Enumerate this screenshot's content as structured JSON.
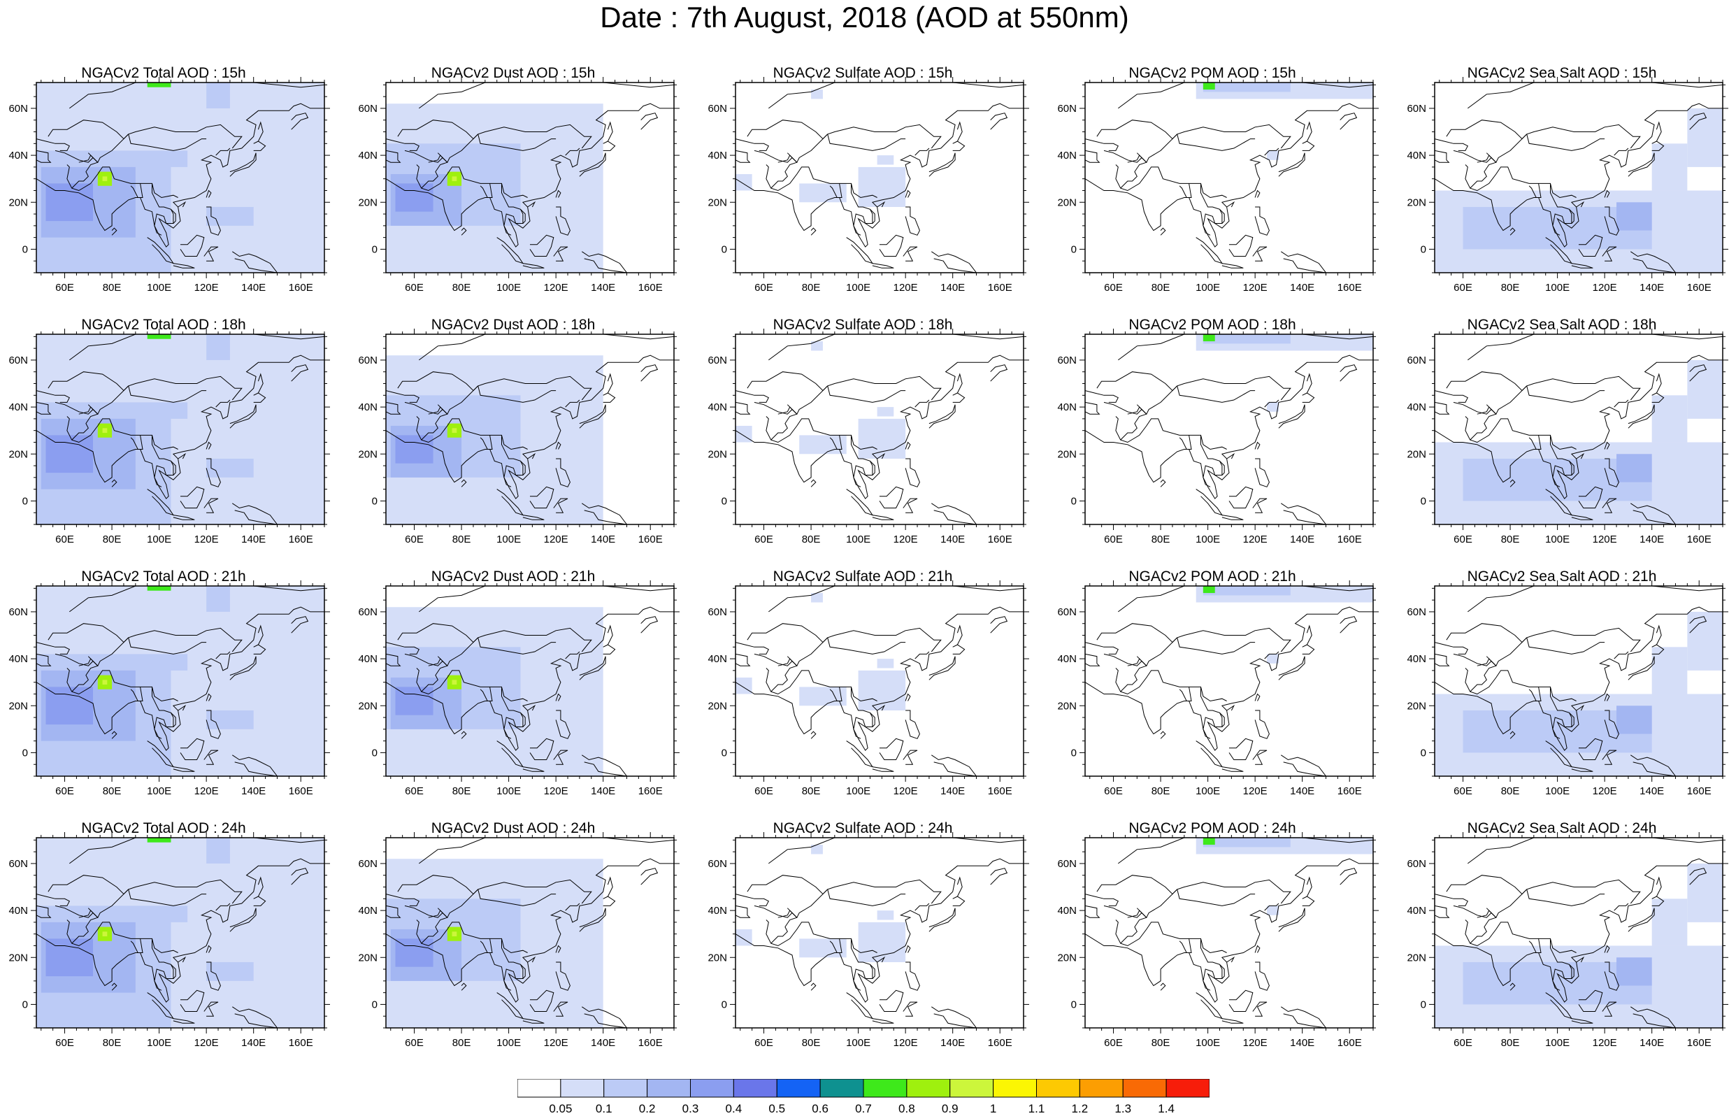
{
  "title": "Date : 7th August, 2018 (AOD at 550nm)",
  "map": {
    "lon_range": [
      48,
      170
    ],
    "lat_range": [
      -10,
      71
    ],
    "x_tick_labels": [
      "60E",
      "80E",
      "100E",
      "120E",
      "140E",
      "160E"
    ],
    "x_tick_values": [
      60,
      80,
      100,
      120,
      140,
      160
    ],
    "y_tick_labels": [
      "0",
      "20N",
      "40N",
      "60N"
    ],
    "y_tick_values": [
      0,
      20,
      40,
      60
    ],
    "coastline_color": "#000000"
  },
  "columns": [
    "Total",
    "Dust",
    "Sulfate",
    "POM",
    "Sea Salt"
  ],
  "times": [
    "15h",
    "18h",
    "21h",
    "24h"
  ],
  "panels": [
    [
      {
        "title": "NGACv2 Total AOD : 15h",
        "species": "total"
      },
      {
        "title": "NGACv2 Dust AOD : 15h",
        "species": "dust"
      },
      {
        "title": "NGACv2 Sulfate AOD : 15h",
        "species": "sulfate"
      },
      {
        "title": "NGACv2 POM AOD : 15h",
        "species": "pom"
      },
      {
        "title": "NGACv2 Sea Salt AOD : 15h",
        "species": "seasalt"
      }
    ],
    [
      {
        "title": "NGACv2 Total AOD : 18h",
        "species": "total"
      },
      {
        "title": "NGACv2 Dust AOD : 18h",
        "species": "dust"
      },
      {
        "title": "NGACv2 Sulfate AOD : 18h",
        "species": "sulfate"
      },
      {
        "title": "NGACv2 POM AOD : 18h",
        "species": "pom"
      },
      {
        "title": "NGACv2 Sea Salt AOD : 18h",
        "species": "seasalt"
      }
    ],
    [
      {
        "title": "NGACv2 Total AOD : 21h",
        "species": "total"
      },
      {
        "title": "NGACv2 Dust AOD : 21h",
        "species": "dust"
      },
      {
        "title": "NGACv2 Sulfate AOD : 21h",
        "species": "sulfate"
      },
      {
        "title": "NGACv2 POM AOD : 21h",
        "species": "pom"
      },
      {
        "title": "NGACv2 Sea Salt AOD : 21h",
        "species": "seasalt"
      }
    ],
    [
      {
        "title": "NGACv2 Total AOD : 24h",
        "species": "total"
      },
      {
        "title": "NGACv2 Dust AOD : 24h",
        "species": "dust"
      },
      {
        "title": "NGACv2 Sulfate AOD : 24h",
        "species": "sulfate"
      },
      {
        "title": "NGACv2 POM AOD : 24h",
        "species": "pom"
      },
      {
        "title": "NGACv2 Sea Salt  AOD : 24h",
        "species": "seasalt"
      }
    ]
  ],
  "colorbar": {
    "labels": [
      "0.05",
      "0.1",
      "0.2",
      "0.3",
      "0.4",
      "0.5",
      "0.6",
      "0.7",
      "0.8",
      "0.9",
      "1",
      "1.1",
      "1.2",
      "1.3",
      "1.4"
    ],
    "colors": [
      "#ffffff",
      "#d5def8",
      "#bccbf6",
      "#a3b6f2",
      "#8b9ef0",
      "#6a76ea",
      "#1463f5",
      "#0e9190",
      "#3ee91b",
      "#9ff00e",
      "#ccf63b",
      "#fbf603",
      "#fdc902",
      "#fc9e02",
      "#f96a05",
      "#f71d0a"
    ]
  },
  "aod_fields": {
    "total": [
      {
        "lon": [
          48,
          170
        ],
        "lat": [
          -10,
          71
        ],
        "level": 1
      },
      {
        "lon": [
          48,
          105
        ],
        "lat": [
          -10,
          42
        ],
        "level": 2
      },
      {
        "lon": [
          50,
          90
        ],
        "lat": [
          5,
          35
        ],
        "level": 3
      },
      {
        "lon": [
          52,
          72
        ],
        "lat": [
          12,
          28
        ],
        "level": 4
      },
      {
        "lon": [
          74,
          80
        ],
        "lat": [
          27,
          33
        ],
        "level": 9
      },
      {
        "lon": [
          76,
          78
        ],
        "lat": [
          29,
          31
        ],
        "level": 10
      },
      {
        "lon": [
          95,
          105
        ],
        "lat": [
          69,
          71
        ],
        "level": 8
      },
      {
        "lon": [
          105,
          112
        ],
        "lat": [
          35,
          42
        ],
        "level": 2
      },
      {
        "lon": [
          120,
          140
        ],
        "lat": [
          10,
          18
        ],
        "level": 2
      },
      {
        "lon": [
          120,
          130
        ],
        "lat": [
          60,
          71
        ],
        "level": 2
      }
    ],
    "dust": [
      {
        "lon": [
          48,
          140
        ],
        "lat": [
          -10,
          62
        ],
        "level": 1
      },
      {
        "lon": [
          48,
          105
        ],
        "lat": [
          10,
          45
        ],
        "level": 2
      },
      {
        "lon": [
          50,
          80
        ],
        "lat": [
          10,
          32
        ],
        "level": 3
      },
      {
        "lon": [
          52,
          68
        ],
        "lat": [
          16,
          28
        ],
        "level": 4
      },
      {
        "lon": [
          74,
          80
        ],
        "lat": [
          27,
          33
        ],
        "level": 9
      },
      {
        "lon": [
          76,
          78
        ],
        "lat": [
          29,
          31
        ],
        "level": 10
      }
    ],
    "sulfate": [
      {
        "lon": [
          100,
          120
        ],
        "lat": [
          18,
          35
        ],
        "level": 1
      },
      {
        "lon": [
          75,
          95
        ],
        "lat": [
          20,
          28
        ],
        "level": 1
      },
      {
        "lon": [
          80,
          85
        ],
        "lat": [
          64,
          68
        ],
        "level": 1
      },
      {
        "lon": [
          108,
          115
        ],
        "lat": [
          36,
          40
        ],
        "level": 1
      },
      {
        "lon": [
          48,
          55
        ],
        "lat": [
          25,
          32
        ],
        "level": 1
      }
    ],
    "pom": [
      {
        "lon": [
          95,
          170
        ],
        "lat": [
          64,
          71
        ],
        "level": 1
      },
      {
        "lon": [
          98,
          135
        ],
        "lat": [
          67,
          71
        ],
        "level": 2
      },
      {
        "lon": [
          98,
          103
        ],
        "lat": [
          68,
          71
        ],
        "level": 8
      },
      {
        "lon": [
          125,
          130
        ],
        "lat": [
          38,
          42
        ],
        "level": 1
      }
    ],
    "seasalt": [
      {
        "lon": [
          48,
          170
        ],
        "lat": [
          -10,
          25
        ],
        "level": 1
      },
      {
        "lon": [
          60,
          140
        ],
        "lat": [
          0,
          18
        ],
        "level": 2
      },
      {
        "lon": [
          140,
          155
        ],
        "lat": [
          25,
          45
        ],
        "level": 1
      },
      {
        "lon": [
          125,
          140
        ],
        "lat": [
          8,
          20
        ],
        "level": 3
      },
      {
        "lon": [
          155,
          170
        ],
        "lat": [
          35,
          60
        ],
        "level": 1
      }
    ]
  }
}
